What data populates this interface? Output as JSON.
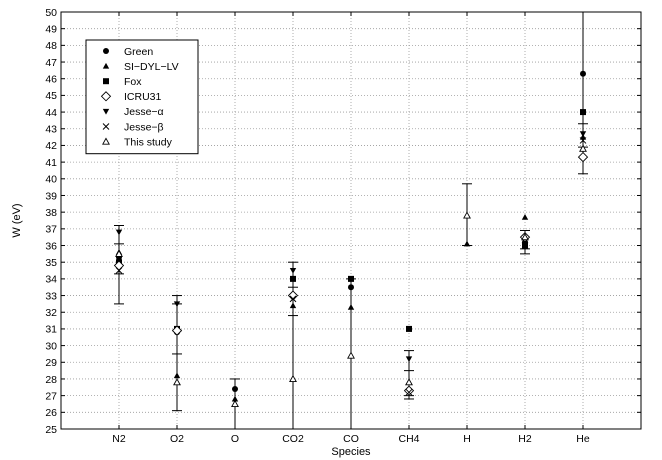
{
  "chart_data": {
    "type": "scatter",
    "xlabel": "Species",
    "ylabel": "W (eV)",
    "ylim": [
      25,
      50
    ],
    "yticks": [
      25,
      26,
      27,
      28,
      29,
      30,
      31,
      32,
      33,
      34,
      35,
      36,
      37,
      38,
      39,
      40,
      41,
      42,
      43,
      44,
      45,
      46,
      47,
      48,
      49,
      50
    ],
    "categories": [
      "N2",
      "O2",
      "O",
      "CO2",
      "CO",
      "CH4",
      "H",
      "H2",
      "He"
    ],
    "grid": true,
    "legend_position": "top-left",
    "series": [
      {
        "name": "Green",
        "marker": "circle",
        "values": [
          35.3,
          30.8,
          27.4,
          33.0,
          33.5,
          null,
          null,
          36.2,
          46.3
        ]
      },
      {
        "name": "SI−DYL−LV",
        "marker": "triangle-up",
        "values": [
          35.6,
          28.2,
          26.8,
          32.4,
          32.3,
          27.4,
          36.1,
          37.7,
          42.5
        ]
      },
      {
        "name": "Fox",
        "marker": "square",
        "values": [
          35.0,
          31.0,
          null,
          34.0,
          34.0,
          31.0,
          null,
          36.0,
          44.0
        ]
      },
      {
        "name": "ICRU31",
        "marker": "diamond-open",
        "values": [
          34.8,
          30.9,
          null,
          33.0,
          null,
          27.3,
          null,
          36.5,
          41.3
        ]
      },
      {
        "name": "Jesse−α",
        "marker": "triangle-down",
        "values": [
          36.8,
          32.5,
          null,
          34.5,
          null,
          29.2,
          null,
          null,
          42.7
        ]
      },
      {
        "name": "Jesse−β",
        "marker": "cross",
        "values": [
          34.5,
          null,
          null,
          32.8,
          null,
          27.2,
          null,
          36.0,
          42.3
        ]
      },
      {
        "name": "This study",
        "marker": "triangle-up-open",
        "values": [
          35.5,
          27.8,
          26.5,
          28.0,
          29.4,
          27.8,
          37.8,
          36.5,
          41.8
        ]
      }
    ],
    "error_bars": [
      {
        "category": "N2",
        "center": 35.5,
        "low": 32.5,
        "high": 37.2,
        "ticks": [
          32.5,
          34.3,
          36.1,
          37.2
        ]
      },
      {
        "category": "O2",
        "center": 27.8,
        "low": 26.1,
        "high": 33.0,
        "ticks": [
          26.1,
          29.5,
          32.5,
          33.0
        ]
      },
      {
        "category": "O",
        "center": 26.5,
        "low": 25.0,
        "high": 28.0,
        "ticks": [
          28.0
        ]
      },
      {
        "category": "CO2",
        "center": 28.0,
        "low": 25.0,
        "high": 35.0,
        "ticks": [
          31.8,
          33.5,
          35.0
        ]
      },
      {
        "category": "CO",
        "center": 29.4,
        "low": 25.0,
        "high": 34.0,
        "ticks": [
          34.0
        ]
      },
      {
        "category": "CH4",
        "center": 27.8,
        "low": 26.8,
        "high": 29.7,
        "ticks": [
          26.8,
          27.0,
          28.5,
          29.7
        ]
      },
      {
        "category": "H",
        "center": 37.8,
        "low": 36.0,
        "high": 39.7,
        "ticks": [
          36.0,
          39.7
        ]
      },
      {
        "category": "H2",
        "center": 36.5,
        "low": 35.5,
        "high": 36.9,
        "ticks": [
          35.5,
          35.8,
          36.9
        ]
      },
      {
        "category": "He",
        "center": 41.8,
        "low": 40.3,
        "high": 50.0,
        "ticks": [
          40.3,
          41.9,
          43.3
        ]
      }
    ]
  }
}
